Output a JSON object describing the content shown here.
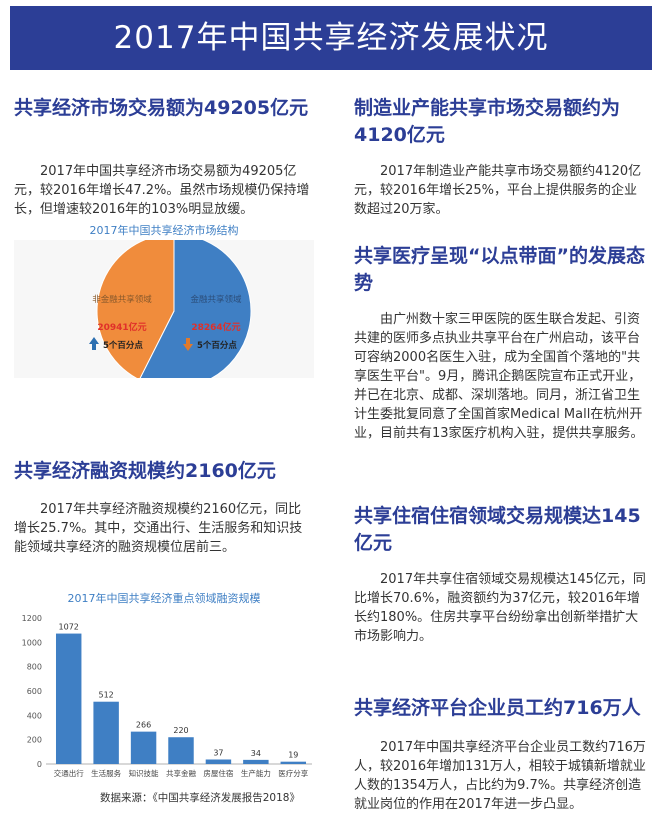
{
  "banner": {
    "title": "2017年中国共享经济发展状况"
  },
  "left": {
    "s1": {
      "heading": "共享经济市场交易额为49205亿元",
      "body": "2017年中国共享经济市场交易额为49205亿元，较2016年增长47.2%。虽然市场规模仍保持增长，但增速较2016年的103%明显放缓。"
    },
    "s2": {
      "heading": "共享经济融资规模约2160亿元",
      "body": "2017年共享经济融资规模约2160亿元，同比增长25.7%。其中，交通出行、生活服务和知识技能领域共享经济的融资规模位居前三。"
    },
    "source": "数据来源：《中国共享经济发展报告2018》"
  },
  "right": {
    "s1": {
      "heading": "制造业产能共享市场交易额约为4120亿元",
      "body": "2017年制造业产能共享市场交易额约4120亿元，较2016年增长25%，平台上提供服务的企业数超过20万家。"
    },
    "s2": {
      "heading": "共享医疗呈现“以点带面”的发展态势",
      "body": "由广州数十家三甲医院的医生联合发起、引资共建的医师多点执业共享平台在广州启动，该平台可容纳2000名医生入驻，成为全国首个落地的\"共享医生平台\"。9月，腾讯企鹅医院宣布正式开业，并已在北京、成都、深圳落地。同月，浙江省卫生计生委批复同意了全国首家Medical Mall在杭州开业，目前共有13家医疗机构入驻，提供共享服务。"
    },
    "s3": {
      "heading": "共享住宿住宿领域交易规模达145亿元",
      "body": "2017年共享住宿领域交易规模达145亿元，同比增长70.6%，融资额约为37亿元，较2016年增长约180%。住房共享平台纷纷拿出创新举措扩大市场影响力。"
    },
    "s4": {
      "heading": "共享经济平台企业员工约716万人",
      "body": "2017年中国共享经济平台企业员工数约716万人，较2016年增加131万人，相较于城镇新增就业人数的1354万人，占比约为9.7%。共享经济创造就业岗位的作用在2017年进一步凸显。"
    },
    "colors": {
      "accent": "#2c3e96",
      "chart_blue": "#3f7fc4",
      "chart_orange": "#f08c3c"
    }
  },
  "chart_data": [
    {
      "type": "pie",
      "title": "2017年中国共享经济市场结构",
      "slices": [
        {
          "label": "非金融共享领域",
          "value": 20941,
          "value_label": "20941亿元",
          "change": "5个百分点",
          "direction": "up",
          "color": "#f08c3c"
        },
        {
          "label": "金融共享领域",
          "value": 28264,
          "value_label": "28264亿元",
          "change": "5个百分点",
          "direction": "down",
          "color": "#3f7fc4"
        }
      ]
    },
    {
      "type": "bar",
      "title": "2017年中国共享经济重点领域融资规模",
      "categories": [
        "交通出行",
        "生活服务",
        "知识技能",
        "共享金融",
        "房屋住宿",
        "生产能力",
        "医疗分享"
      ],
      "values": [
        1072,
        512,
        266,
        220,
        37,
        34,
        19
      ],
      "ylim": [
        0,
        1200
      ],
      "yticks": [
        0,
        200,
        400,
        600,
        800,
        1000,
        1200
      ],
      "xlabel": "",
      "ylabel": "",
      "color": "#3f7fc4"
    }
  ]
}
